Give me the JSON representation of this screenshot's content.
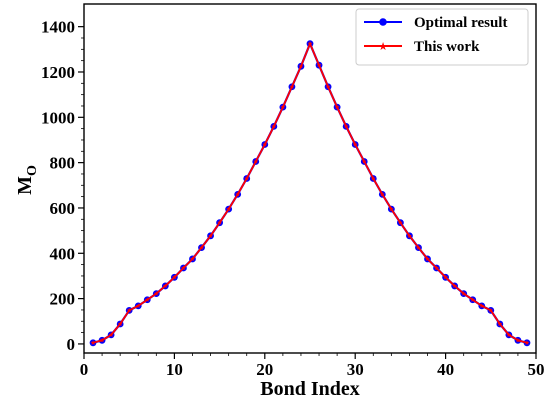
{
  "chart_data": {
    "type": "line",
    "xlabel": "Bond Index",
    "ylabel_main": "M",
    "ylabel_sub": "O",
    "xlim": [
      0,
      50
    ],
    "ylim": [
      -40,
      1500
    ],
    "xticks": [
      0,
      10,
      20,
      30,
      40,
      50
    ],
    "yticks": [
      0,
      200,
      400,
      600,
      800,
      1000,
      1200,
      1400
    ],
    "grid": false,
    "legend_position": "top-right",
    "x": [
      1,
      2,
      3,
      4,
      5,
      6,
      7,
      8,
      9,
      10,
      11,
      12,
      13,
      14,
      15,
      16,
      17,
      18,
      19,
      20,
      21,
      22,
      23,
      24,
      25,
      26,
      27,
      28,
      29,
      30,
      31,
      32,
      33,
      34,
      35,
      36,
      37,
      38,
      39,
      40,
      41,
      42,
      43,
      44,
      45,
      46,
      47,
      48,
      49
    ],
    "series": [
      {
        "name": "Optimal result",
        "color": "#0000ff",
        "marker": "circle",
        "values": [
          5,
          16,
          40,
          88,
          148,
          168,
          195,
          222,
          256,
          294,
          335,
          375,
          425,
          477,
          535,
          595,
          660,
          730,
          805,
          880,
          960,
          1045,
          1135,
          1225,
          1325,
          1230,
          1135,
          1045,
          960,
          880,
          805,
          730,
          660,
          595,
          535,
          477,
          425,
          375,
          335,
          294,
          256,
          222,
          195,
          168,
          148,
          88,
          40,
          16,
          5
        ]
      },
      {
        "name": "This work",
        "color": "#ff0000",
        "marker": "star",
        "values": [
          5,
          16,
          40,
          88,
          148,
          168,
          195,
          222,
          256,
          294,
          335,
          375,
          425,
          477,
          535,
          595,
          660,
          730,
          805,
          880,
          960,
          1045,
          1135,
          1225,
          1325,
          1230,
          1135,
          1045,
          960,
          880,
          805,
          730,
          660,
          595,
          535,
          477,
          425,
          375,
          335,
          294,
          256,
          222,
          195,
          168,
          148,
          88,
          40,
          16,
          5
        ]
      }
    ]
  }
}
